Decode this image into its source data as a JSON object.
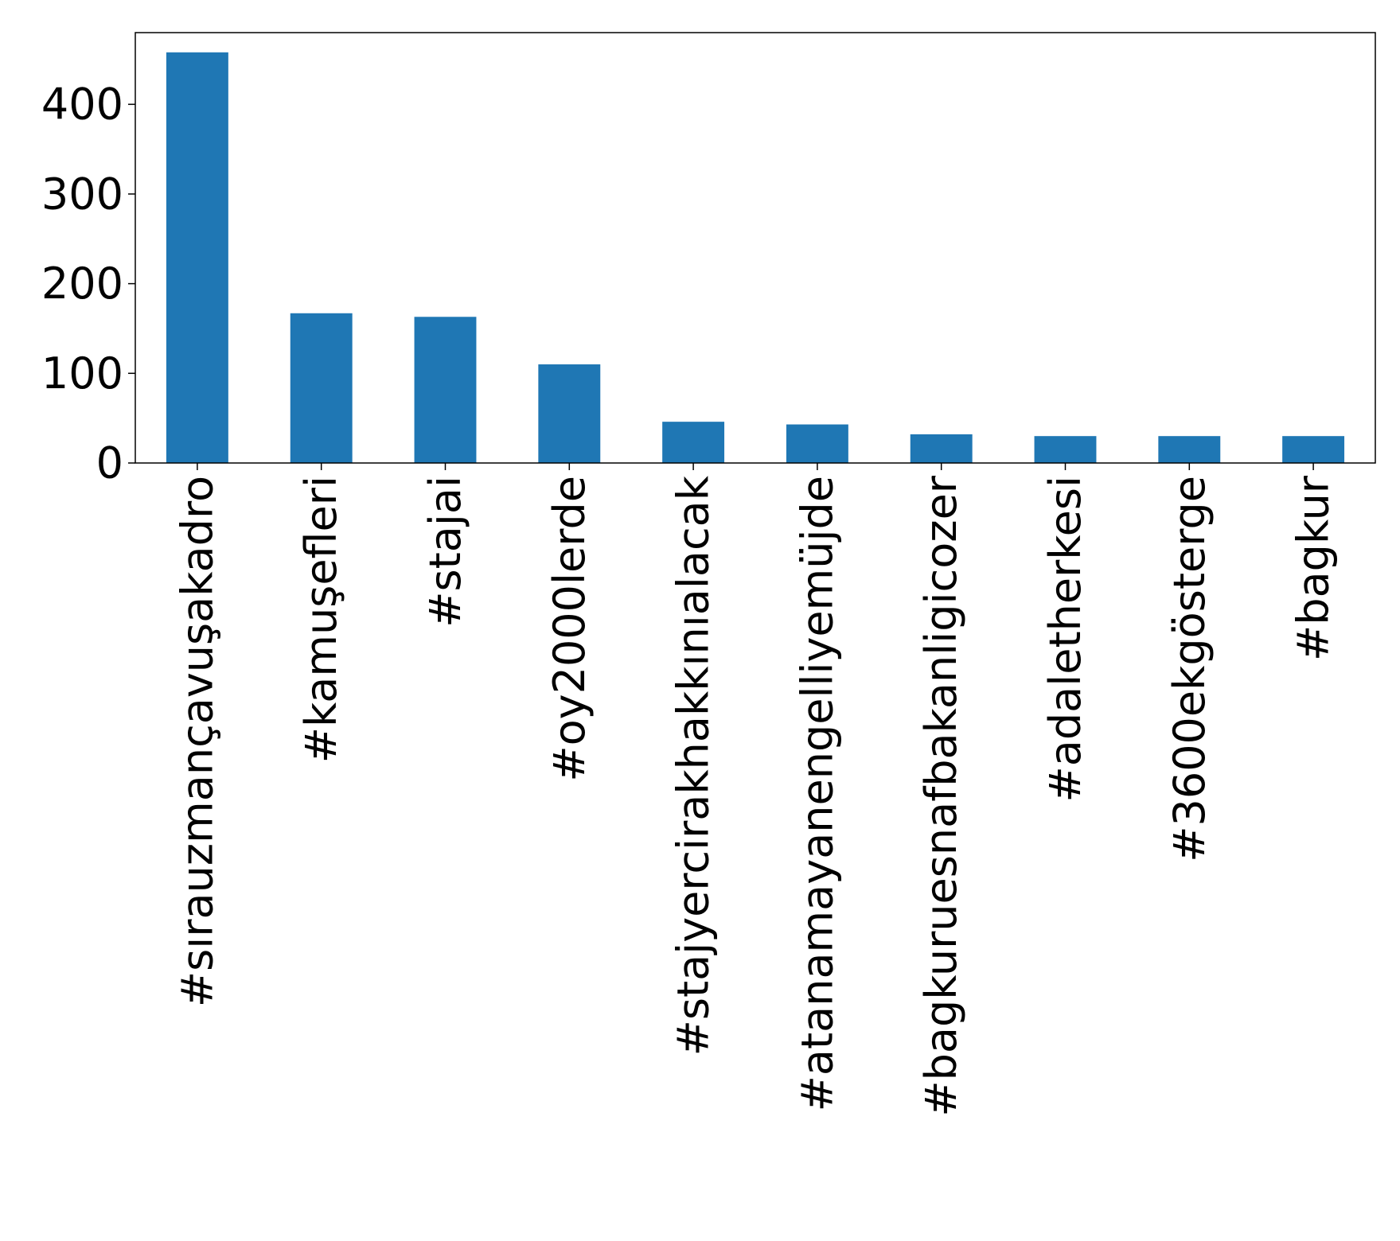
{
  "chart_data": {
    "type": "bar",
    "title": "",
    "xlabel": "",
    "ylabel": "",
    "categories": [
      "#sırauzmançavuşakadro",
      "#kamuşefleri",
      "#stajai",
      "#oy2000lerde",
      "#stajyercirakhakkınıalacak",
      "#atanamayanengelliyemüjde",
      "#bagkuruesnafbakanligicozer",
      "#adaletherkesi",
      "#3600ekgösterge",
      "#bagkur"
    ],
    "values": [
      458,
      167,
      163,
      110,
      46,
      43,
      32,
      30,
      30,
      30
    ],
    "ylim": [
      0,
      480
    ],
    "yticks": [
      0,
      100,
      200,
      300,
      400
    ],
    "bar_color": "#1f77b4",
    "grid": false,
    "legend": "none"
  }
}
